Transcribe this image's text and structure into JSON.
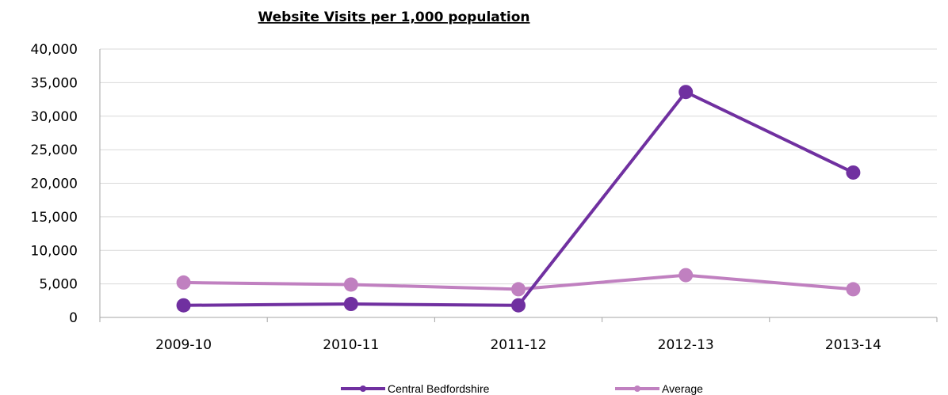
{
  "chart_data": {
    "type": "line",
    "title": "Website Visits per 1,000 population",
    "categories": [
      "2009-10",
      "2010-11",
      "2011-12",
      "2012-13",
      "2013-14"
    ],
    "ylim": [
      0,
      40000
    ],
    "yticks": [
      0,
      5000,
      10000,
      15000,
      20000,
      25000,
      30000,
      35000,
      40000
    ],
    "ytick_labels": [
      "0",
      "5,000",
      "10,000",
      "15,000",
      "20,000",
      "25,000",
      "30,000",
      "35,000",
      "40,000"
    ],
    "grid": true,
    "legend_position": "bottom",
    "series": [
      {
        "name": "Central Bedfordshire",
        "color": "#7030a0",
        "values": [
          1800,
          2000,
          1800,
          33600,
          21600
        ]
      },
      {
        "name": "Average",
        "color": "#c080c0",
        "values": [
          5200,
          4900,
          4200,
          6300,
          4200
        ]
      }
    ]
  }
}
